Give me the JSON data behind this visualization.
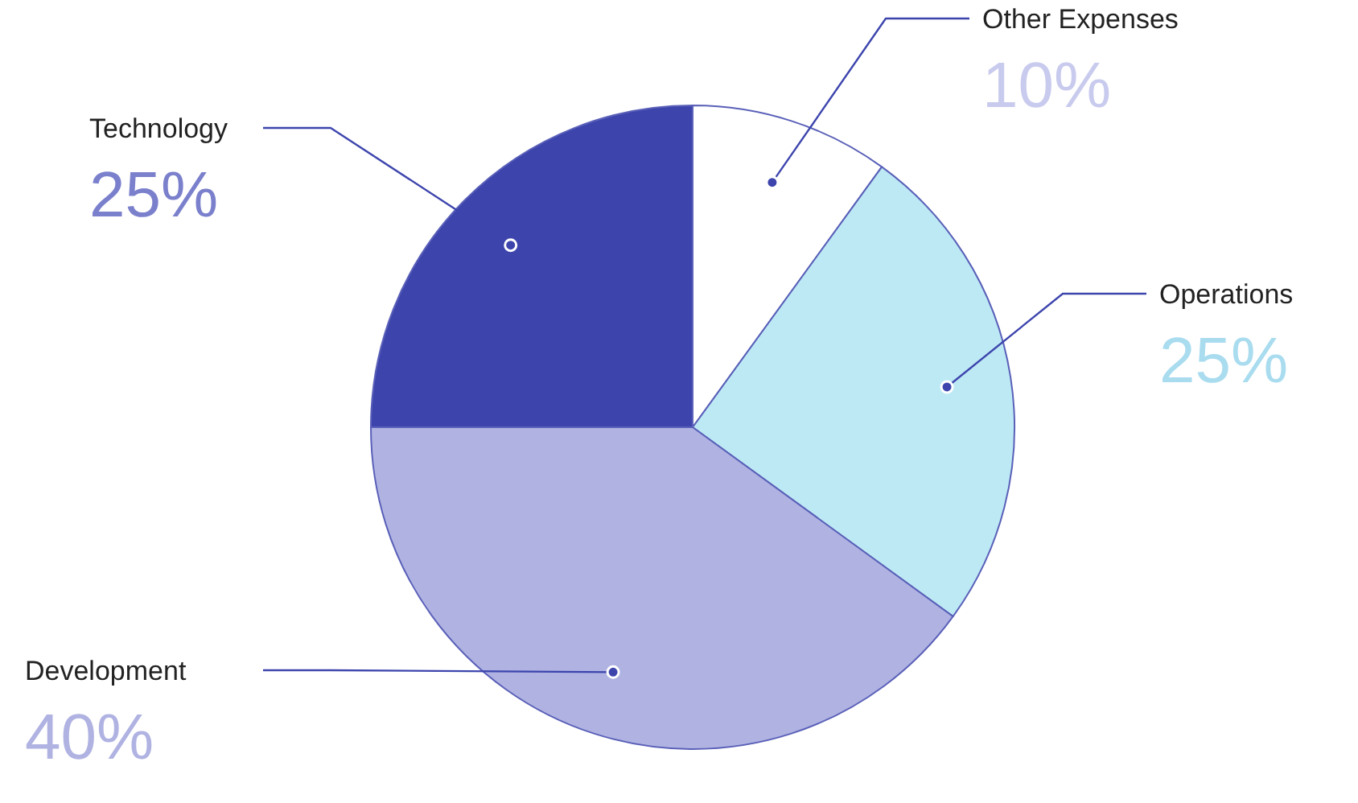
{
  "chart_data": {
    "type": "pie",
    "categories": [
      "Other Expenses",
      "Operations",
      "Development",
      "Technology"
    ],
    "values": [
      10,
      25,
      40,
      25
    ],
    "colors": [
      "#ffffff",
      "#bde9f5",
      "#b0b3e2",
      "#3d45ad"
    ],
    "value_labels": [
      "10%",
      "25%",
      "40%",
      "25%"
    ]
  }
}
